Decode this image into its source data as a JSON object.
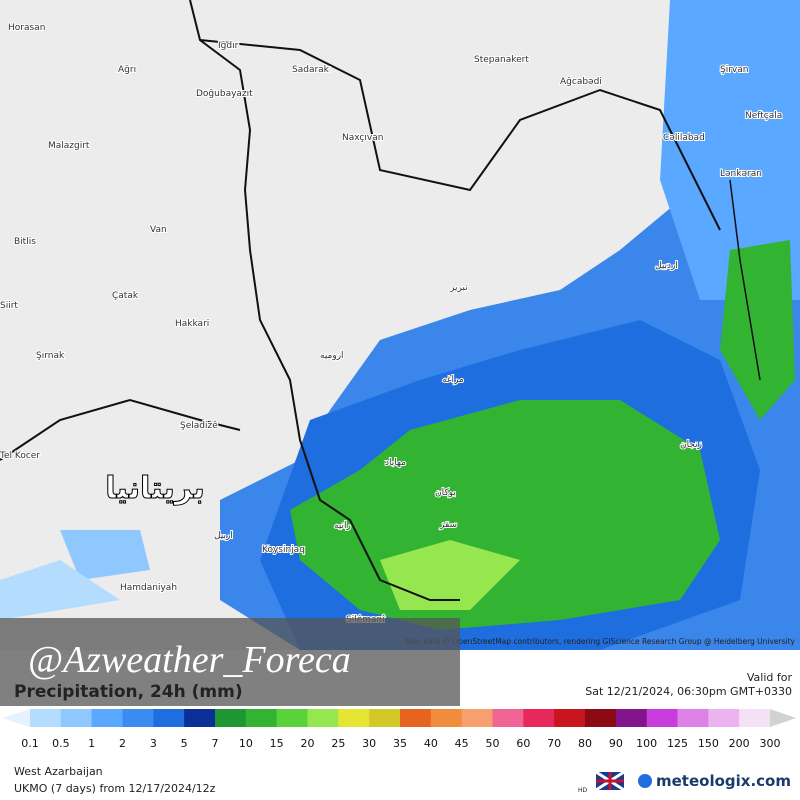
{
  "watermark": "@Azweather_Foreca",
  "overlay_text": "بريتانيا",
  "map_credit": "Map data © OpenStreetMap contributors, rendering GIScience Research Group @ Heidelberg University",
  "map_labels": [
    "Horasan",
    "Ağrı",
    "Iğdır",
    "Sadarak",
    "Doğubayazıt",
    "Malazgirt",
    "Van",
    "Bitlis",
    "Siirt",
    "Çatak",
    "Hakkari",
    "Şırnak",
    "Naxçıvan",
    "Stepanakert",
    "Ağcabədi",
    "Şirvan",
    "Cəlilabad",
    "Neftçala",
    "Lənkəran",
    "Şeladizê",
    "Koysinjaq",
    "Hamdaniyah",
    "Silêmanî",
    "ارومیه",
    "تبريز",
    "اردبيل",
    "مراغه",
    "زنجان",
    "مهاباد",
    "بوکان",
    "سقز",
    "اربيل",
    "رانيه",
    "Tel Kocer"
  ],
  "product": {
    "title": "Precipitation, 24h (mm)",
    "valid_label": "Valid for",
    "valid_time": "Sat 12/21/2024, 06:30pm GMT+0330"
  },
  "legend": {
    "ticks": [
      0.1,
      0.5,
      1,
      2,
      3,
      5,
      7,
      10,
      15,
      20,
      25,
      30,
      35,
      40,
      45,
      50,
      60,
      70,
      80,
      90,
      100,
      125,
      150,
      200,
      300
    ],
    "colors": [
      "#b4dcff",
      "#8ec8ff",
      "#5aa8ff",
      "#3b8cf0",
      "#1e6ee0",
      "#0a2f96",
      "#1e9632",
      "#32b432",
      "#5ad23c",
      "#96e650",
      "#e6e632",
      "#d2c828",
      "#e6641e",
      "#f08c3c",
      "#f5a06e",
      "#f06496",
      "#e6285a",
      "#c8141e",
      "#8c0a14",
      "#82148c",
      "#c83cdc",
      "#dc82e6",
      "#ebb4f0",
      "#f5e1f5",
      "#d2d2d2"
    ]
  },
  "footer": {
    "region": "West Azarbaijan",
    "model": "UKMO (7 days) from 12/17/2024/12z",
    "hd": "HD",
    "brand": "meteologix.com"
  }
}
